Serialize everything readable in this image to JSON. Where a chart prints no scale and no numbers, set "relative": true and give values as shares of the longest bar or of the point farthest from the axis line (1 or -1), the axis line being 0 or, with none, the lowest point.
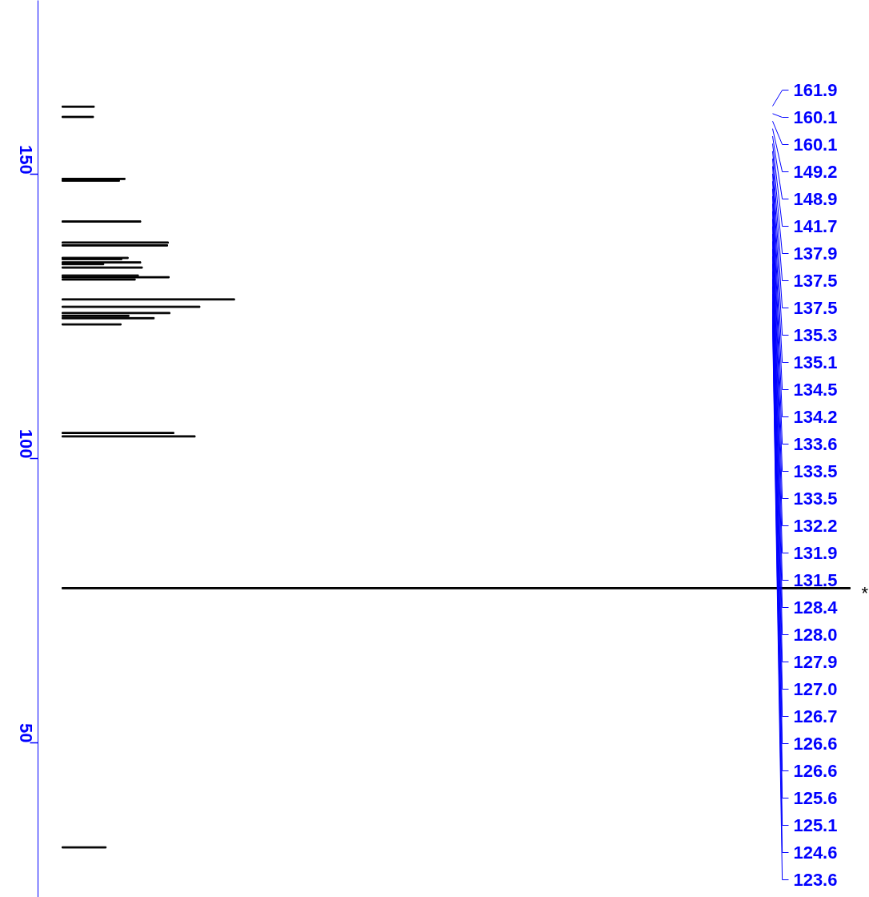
{
  "chart_data": {
    "type": "bar",
    "orientation": "horizontal",
    "relative": true,
    "color": "#000000",
    "x": [
      161.9,
      160.1,
      149.2,
      148.9,
      141.7,
      138.0,
      137.5,
      135.3,
      135.1,
      134.5,
      134.2,
      133.6,
      132.2,
      131.9,
      131.5,
      128.0,
      126.7,
      125.6,
      125.1,
      124.7,
      123.6,
      104.5,
      103.9,
      77.2,
      31.6
    ],
    "values": [
      0.041,
      0.04,
      0.08,
      0.073,
      0.1,
      0.135,
      0.134,
      0.084,
      0.076,
      0.1,
      0.053,
      0.102,
      0.097,
      0.136,
      0.093,
      0.219,
      0.175,
      0.137,
      0.085,
      0.117,
      0.075,
      0.142,
      0.169,
      1.0,
      0.056
    ],
    "ylim": [
      22.8,
      180.6
    ],
    "yticks": [
      50,
      100,
      150
    ],
    "annotations": [
      "161.9",
      "160.1",
      "160.1",
      "149.2",
      "148.9",
      "141.7",
      "137.9",
      "137.5",
      "137.5",
      "135.3",
      "135.1",
      "134.5",
      "134.2",
      "133.6",
      "133.5",
      "133.5",
      "132.2",
      "131.9",
      "131.5",
      "128.4",
      "128.0",
      "127.9",
      "127.0",
      "126.7",
      "126.6",
      "126.6",
      "125.6",
      "125.1",
      "124.6",
      "123.6",
      {
        "text": "*",
        "x": 1.0,
        "y": 77.2
      }
    ]
  }
}
